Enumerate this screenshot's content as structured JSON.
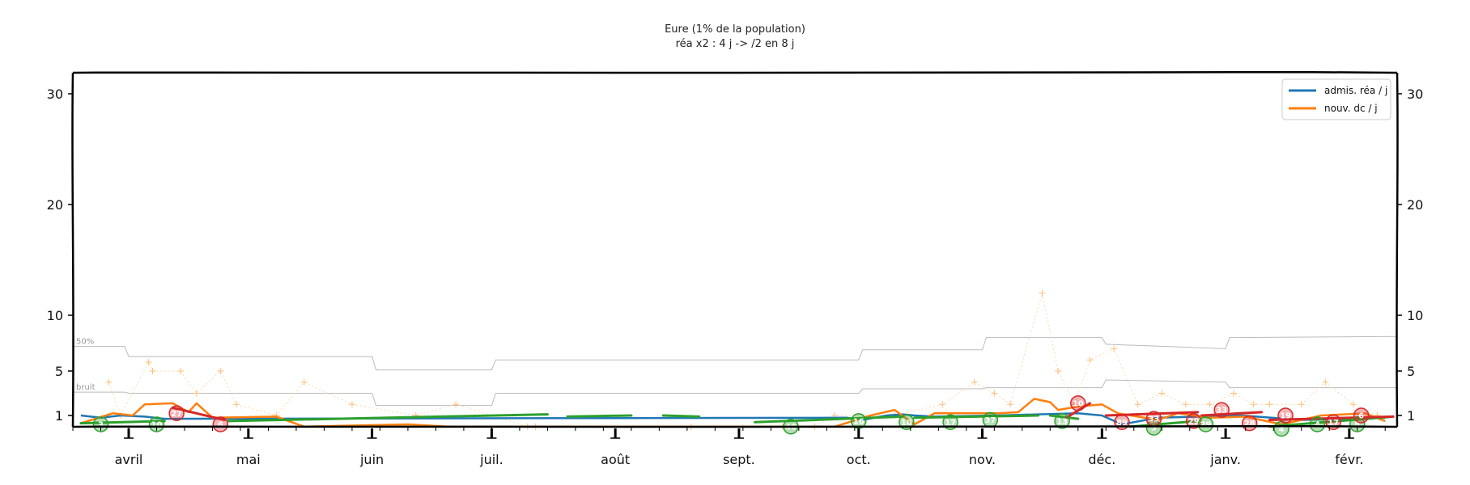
{
  "chart_data": {
    "type": "line",
    "title": "Eure (1% de la population)",
    "subtitle": "réa x2 : 4 j -> /2 en 8 j",
    "y_ticks": [
      1,
      5,
      10,
      20,
      30
    ],
    "ylim": [
      0,
      32
    ],
    "x_range": [
      "2020-03-18",
      "2021-02-13"
    ],
    "x_ticks": [
      {
        "date": "2020-04-01",
        "label": "avril"
      },
      {
        "date": "2020-05-01",
        "label": "mai"
      },
      {
        "date": "2020-06-01",
        "label": "juin"
      },
      {
        "date": "2020-07-01",
        "label": "juil."
      },
      {
        "date": "2020-08-01",
        "label": "août"
      },
      {
        "date": "2020-09-01",
        "label": "sept."
      },
      {
        "date": "2020-10-01",
        "label": "oct."
      },
      {
        "date": "2020-11-01",
        "label": "nov."
      },
      {
        "date": "2020-12-01",
        "label": "déc."
      },
      {
        "date": "2021-01-01",
        "label": "janv."
      },
      {
        "date": "2021-02-01",
        "label": "févr."
      }
    ],
    "legend": {
      "position": "top-right",
      "entries": [
        {
          "label": "admis. réa / j",
          "color": "#1f77b4"
        },
        {
          "label": "nouv. dc / j",
          "color": "#ff7f0e"
        }
      ]
    },
    "threshold_lines": [
      {
        "label": "50%",
        "color": "#bbbbbb",
        "points": [
          [
            "2020-03-18",
            7.2
          ],
          [
            "2020-03-31",
            7.2
          ],
          [
            "2020-04-01",
            6.3
          ],
          [
            "2020-06-01",
            6.3
          ],
          [
            "2020-06-02",
            5.1
          ],
          [
            "2020-07-01",
            5.1
          ],
          [
            "2020-07-02",
            6.0
          ],
          [
            "2020-10-01",
            6.0
          ],
          [
            "2020-10-02",
            6.9
          ],
          [
            "2020-11-01",
            6.9
          ],
          [
            "2020-11-02",
            8.0
          ],
          [
            "2020-12-01",
            8.0
          ],
          [
            "2020-12-02",
            7.4
          ],
          [
            "2021-01-01",
            7.0
          ],
          [
            "2021-01-02",
            8.0
          ],
          [
            "2021-02-13",
            8.1
          ]
        ]
      },
      {
        "label": "bruit",
        "color": "#bbbbbb",
        "points": [
          [
            "2020-03-18",
            3.1
          ],
          [
            "2020-03-31",
            3.1
          ],
          [
            "2020-04-01",
            3.0
          ],
          [
            "2020-06-01",
            3.0
          ],
          [
            "2020-06-02",
            1.9
          ],
          [
            "2020-07-01",
            1.9
          ],
          [
            "2020-07-02",
            3.0
          ],
          [
            "2020-10-01",
            3.0
          ],
          [
            "2020-10-02",
            3.4
          ],
          [
            "2020-11-01",
            3.4
          ],
          [
            "2020-11-02",
            3.5
          ],
          [
            "2020-12-01",
            3.5
          ],
          [
            "2020-12-02",
            4.2
          ],
          [
            "2021-01-01",
            4.0
          ],
          [
            "2021-01-02",
            3.5
          ],
          [
            "2021-02-13",
            3.5
          ]
        ]
      }
    ],
    "series": [
      {
        "name": "admis. réa / j",
        "color": "#1f77b4",
        "points": [
          [
            "2020-03-20",
            1.0
          ],
          [
            "2020-03-25",
            0.8
          ],
          [
            "2020-03-30",
            1.0
          ],
          [
            "2020-04-05",
            0.9
          ],
          [
            "2020-04-10",
            0.7
          ],
          [
            "2020-09-28",
            0.8
          ],
          [
            "2020-10-02",
            0.6
          ],
          [
            "2020-10-08",
            1.0
          ],
          [
            "2020-10-12",
            1.1
          ],
          [
            "2020-10-15",
            1.0
          ],
          [
            "2020-10-20",
            0.9
          ],
          [
            "2020-11-05",
            1.0
          ],
          [
            "2020-11-15",
            1.1
          ],
          [
            "2020-11-25",
            1.2
          ],
          [
            "2020-12-01",
            1.0
          ],
          [
            "2020-12-06",
            0.2
          ],
          [
            "2020-12-15",
            0.8
          ],
          [
            "2021-01-05",
            1.0
          ],
          [
            "2021-01-20",
            0.6
          ],
          [
            "2021-02-10",
            0.8
          ]
        ]
      },
      {
        "name": "nouv. dc / j",
        "color": "#ff7f0e",
        "points": [
          [
            "2020-03-20",
            0.3
          ],
          [
            "2020-03-28",
            1.2
          ],
          [
            "2020-04-02",
            1.0
          ],
          [
            "2020-04-05",
            2.0
          ],
          [
            "2020-04-12",
            2.1
          ],
          [
            "2020-04-16",
            1.3
          ],
          [
            "2020-04-18",
            2.1
          ],
          [
            "2020-04-22",
            0.8
          ],
          [
            "2020-05-08",
            0.9
          ],
          [
            "2020-05-15",
            0.0
          ],
          [
            "2020-06-10",
            0.2
          ],
          [
            "2020-06-20",
            0.0
          ],
          [
            "2020-09-25",
            0.0
          ],
          [
            "2020-10-04",
            1.0
          ],
          [
            "2020-10-10",
            1.5
          ],
          [
            "2020-10-15",
            0.2
          ],
          [
            "2020-10-20",
            1.2
          ],
          [
            "2020-11-05",
            1.2
          ],
          [
            "2020-11-10",
            1.3
          ],
          [
            "2020-11-14",
            2.5
          ],
          [
            "2020-11-18",
            2.2
          ],
          [
            "2020-11-20",
            1.5
          ],
          [
            "2020-11-25",
            1.8
          ],
          [
            "2020-12-01",
            2.0
          ],
          [
            "2020-12-05",
            1.2
          ],
          [
            "2020-12-15",
            0.6
          ],
          [
            "2020-12-20",
            1.2
          ],
          [
            "2020-12-28",
            0.8
          ],
          [
            "2021-01-06",
            0.9
          ],
          [
            "2021-01-15",
            0.2
          ],
          [
            "2021-01-25",
            1.0
          ],
          [
            "2021-02-05",
            1.2
          ],
          [
            "2021-02-10",
            0.5
          ]
        ]
      }
    ],
    "trend_segments": [
      {
        "color": "#2ca02c",
        "points": [
          [
            "2020-03-20",
            0.3
          ],
          [
            "2020-04-10",
            0.5
          ]
        ]
      },
      {
        "color": "#d62728",
        "points": [
          [
            "2020-04-12",
            1.7
          ],
          [
            "2020-04-25",
            0.6
          ]
        ]
      },
      {
        "color": "#2ca02c",
        "points": [
          [
            "2020-04-26",
            0.5
          ],
          [
            "2020-07-15",
            1.1
          ]
        ]
      },
      {
        "color": "#2ca02c",
        "points": [
          [
            "2020-07-20",
            0.9
          ],
          [
            "2020-08-05",
            1.0
          ]
        ]
      },
      {
        "color": "#2ca02c",
        "points": [
          [
            "2020-08-13",
            1.0
          ],
          [
            "2020-08-22",
            0.9
          ]
        ]
      },
      {
        "color": "#2ca02c",
        "points": [
          [
            "2020-09-05",
            0.4
          ],
          [
            "2020-10-12",
            0.9
          ]
        ]
      },
      {
        "color": "#2ca02c",
        "points": [
          [
            "2020-10-15",
            0.8
          ],
          [
            "2020-11-15",
            1.0
          ]
        ]
      },
      {
        "color": "#2ca02c",
        "points": [
          [
            "2020-11-18",
            1.0
          ],
          [
            "2020-11-25",
            0.7
          ]
        ]
      },
      {
        "color": "#d62728",
        "points": [
          [
            "2020-11-22",
            0.8
          ],
          [
            "2020-11-28",
            2.1
          ]
        ]
      },
      {
        "color": "#d62728",
        "points": [
          [
            "2020-12-02",
            1.0
          ],
          [
            "2020-12-25",
            1.3
          ]
        ]
      },
      {
        "color": "#2ca02c",
        "points": [
          [
            "2020-12-08",
            0.0
          ],
          [
            "2020-12-25",
            0.5
          ]
        ]
      },
      {
        "color": "#d62728",
        "points": [
          [
            "2020-12-26",
            1.0
          ],
          [
            "2021-01-10",
            1.3
          ]
        ]
      },
      {
        "color": "#2ca02c",
        "points": [
          [
            "2021-01-12",
            0.0
          ],
          [
            "2021-02-12",
            0.9
          ]
        ]
      },
      {
        "color": "#d62728",
        "points": [
          [
            "2021-01-12",
            0.6
          ],
          [
            "2021-02-12",
            0.9
          ]
        ]
      }
    ],
    "badges": [
      {
        "date": "2020-03-25",
        "y": 0.2,
        "label": "3",
        "color": "#2ca02c"
      },
      {
        "date": "2020-04-08",
        "y": 0.2,
        "label": "10",
        "color": "#2ca02c"
      },
      {
        "date": "2020-04-13",
        "y": 1.2,
        "label": "27",
        "color": "#d62728"
      },
      {
        "date": "2020-04-24",
        "y": 0.2,
        "label": "6",
        "color": "#d62728"
      },
      {
        "date": "2020-09-14",
        "y": 0.0,
        "label": "40",
        "color": "#2ca02c"
      },
      {
        "date": "2020-10-01",
        "y": 0.5,
        "label": "16",
        "color": "#2ca02c"
      },
      {
        "date": "2020-10-13",
        "y": 0.4,
        "label": "10",
        "color": "#2ca02c"
      },
      {
        "date": "2020-10-24",
        "y": 0.4,
        "label": "17",
        "color": "#2ca02c"
      },
      {
        "date": "2020-11-03",
        "y": 0.6,
        "label": "37",
        "color": "#2ca02c"
      },
      {
        "date": "2020-11-21",
        "y": 0.5,
        "label": "13",
        "color": "#2ca02c"
      },
      {
        "date": "2020-11-25",
        "y": 2.1,
        "label": "10",
        "color": "#d62728"
      },
      {
        "date": "2020-12-06",
        "y": 0.4,
        "label": "89",
        "color": "#d62728"
      },
      {
        "date": "2020-12-14",
        "y": -0.1,
        "label": "3",
        "color": "#2ca02c"
      },
      {
        "date": "2020-12-14",
        "y": 0.7,
        "label": "33",
        "color": "#d62728"
      },
      {
        "date": "2020-12-24",
        "y": 0.5,
        "label": "29",
        "color": "#d62728"
      },
      {
        "date": "2020-12-27",
        "y": 0.2,
        "label": "29",
        "color": "#2ca02c"
      },
      {
        "date": "2020-12-31",
        "y": 1.5,
        "label": "33",
        "color": "#d62728"
      },
      {
        "date": "2021-01-07",
        "y": 0.3,
        "label": "28",
        "color": "#d62728"
      },
      {
        "date": "2021-01-15",
        "y": -0.2,
        "label": "4",
        "color": "#2ca02c"
      },
      {
        "date": "2021-01-16",
        "y": 1.0,
        "label": "19",
        "color": "#d62728"
      },
      {
        "date": "2021-01-24",
        "y": 0.2,
        "label": "4",
        "color": "#2ca02c"
      },
      {
        "date": "2021-01-28",
        "y": 0.4,
        "label": "17",
        "color": "#d62728"
      },
      {
        "date": "2021-02-03",
        "y": 0.2,
        "label": "8",
        "color": "#2ca02c"
      },
      {
        "date": "2021-02-04",
        "y": 1.0,
        "label": "6",
        "color": "#d62728"
      }
    ],
    "noise_points": [
      [
        "2020-03-27",
        4.0
      ],
      [
        "2020-03-30",
        1.0
      ],
      [
        "2020-04-06",
        5.8
      ],
      [
        "2020-04-07",
        5.0
      ],
      [
        "2020-04-14",
        5.0
      ],
      [
        "2020-04-18",
        3.0
      ],
      [
        "2020-04-24",
        5.0
      ],
      [
        "2020-04-28",
        2.0
      ],
      [
        "2020-05-08",
        1.0
      ],
      [
        "2020-05-15",
        4.0
      ],
      [
        "2020-05-27",
        2.0
      ],
      [
        "2020-06-12",
        1.0
      ],
      [
        "2020-06-22",
        2.0
      ],
      [
        "2020-07-10",
        0.0
      ],
      [
        "2020-07-12",
        0.0
      ],
      [
        "2020-08-20",
        0.0
      ],
      [
        "2020-09-12",
        0.0
      ],
      [
        "2020-09-20",
        0.0
      ],
      [
        "2020-09-25",
        1.0
      ],
      [
        "2020-10-10",
        1.0
      ],
      [
        "2020-10-22",
        2.0
      ],
      [
        "2020-10-30",
        4.0
      ],
      [
        "2020-11-04",
        3.0
      ],
      [
        "2020-11-08",
        2.0
      ],
      [
        "2020-11-16",
        12.0
      ],
      [
        "2020-11-20",
        5.0
      ],
      [
        "2020-11-24",
        2.0
      ],
      [
        "2020-11-28",
        6.0
      ],
      [
        "2020-12-04",
        7.0
      ],
      [
        "2020-12-10",
        2.0
      ],
      [
        "2020-12-16",
        3.0
      ],
      [
        "2020-12-22",
        2.0
      ],
      [
        "2020-12-28",
        2.0
      ],
      [
        "2021-01-03",
        3.0
      ],
      [
        "2021-01-08",
        2.0
      ],
      [
        "2021-01-12",
        2.0
      ],
      [
        "2021-01-20",
        2.0
      ],
      [
        "2021-01-26",
        4.0
      ],
      [
        "2021-02-02",
        2.0
      ],
      [
        "2021-02-08",
        1.0
      ]
    ]
  }
}
